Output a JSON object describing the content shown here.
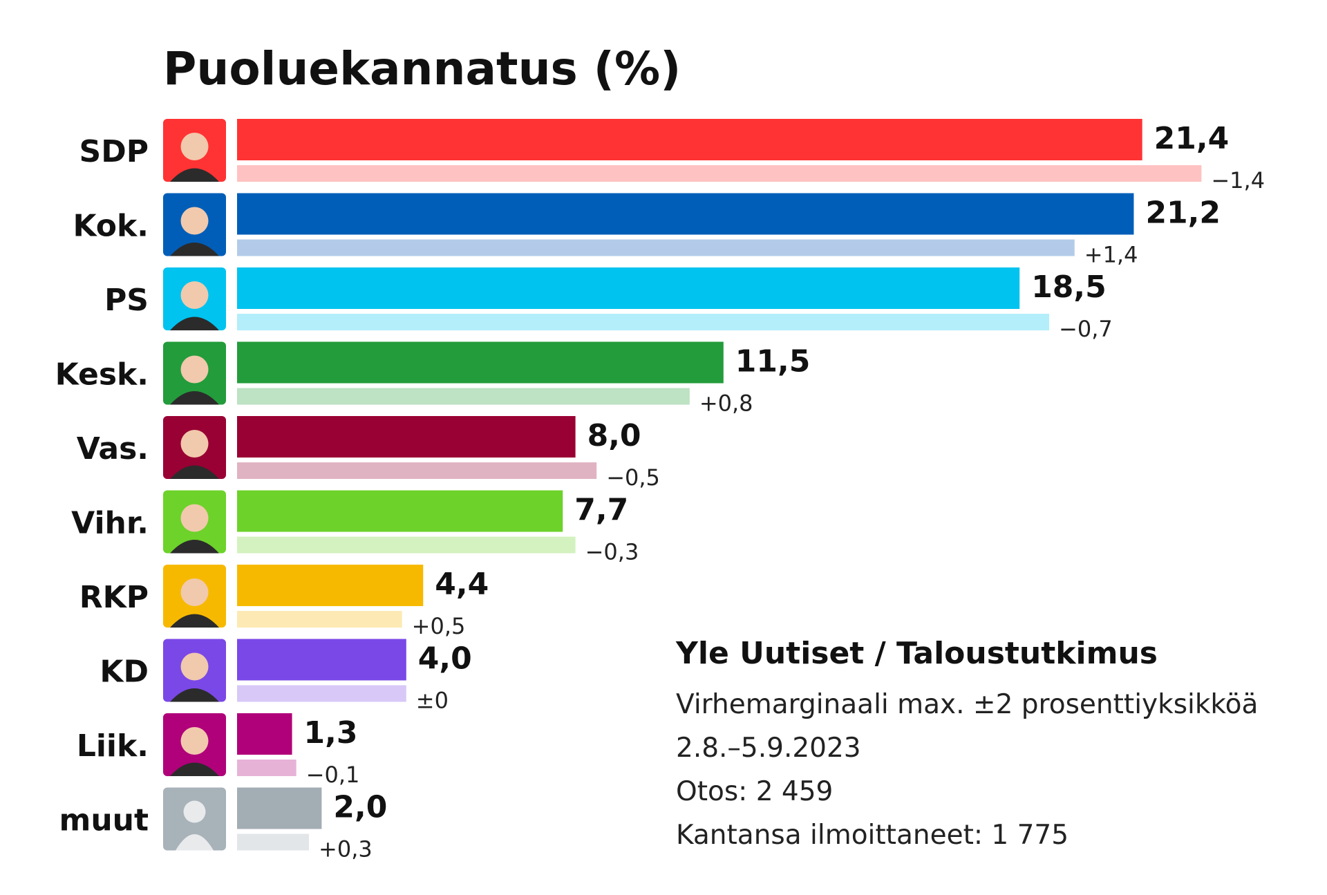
{
  "chart_data": {
    "type": "bar",
    "orientation": "horizontal",
    "title": "Puoluekannatus (%)",
    "categories": [
      "SDP",
      "Kok.",
      "PS",
      "Kesk.",
      "Vas.",
      "Vihr.",
      "RKP",
      "KD",
      "Liik.",
      "muut"
    ],
    "values": [
      21.4,
      21.2,
      18.5,
      11.5,
      8.0,
      7.7,
      4.4,
      4.0,
      1.3,
      2.0
    ],
    "value_labels": [
      "21,4",
      "21,2",
      "18,5",
      "11,5",
      "8,0",
      "7,7",
      "4,4",
      "4,0",
      "1,3",
      "2,0"
    ],
    "previous_values": [
      22.8,
      19.8,
      19.2,
      10.7,
      8.5,
      8.0,
      3.9,
      4.0,
      1.4,
      1.7
    ],
    "changes": [
      -1.4,
      1.4,
      -0.7,
      0.8,
      -0.5,
      -0.3,
      0.5,
      0.0,
      -0.1,
      0.3
    ],
    "change_labels": [
      "−1,4",
      "+1,4",
      "−0,7",
      "+0,8",
      "−0,5",
      "−0,3",
      "+0,5",
      "±0",
      "−0,1",
      "+0,3"
    ],
    "colors": [
      "#ff3333",
      "#005eb8",
      "#00c3ef",
      "#239c3b",
      "#990033",
      "#6dd22a",
      "#f7b900",
      "#7a48e6",
      "#b0007a",
      "#a3adb4"
    ],
    "light_colors": [
      "#ffc2c2",
      "#b3cbe8",
      "#b3eefa",
      "#bde2c4",
      "#e0b3c2",
      "#d3f2bf",
      "#fde9b3",
      "#d7c8f7",
      "#e6b3d7",
      "#e3e6e8"
    ],
    "icons": [
      "portrait-sdp-icon",
      "portrait-kok-icon",
      "portrait-ps-icon",
      "portrait-kesk-icon",
      "portrait-vas-icon",
      "portrait-vihr-icon",
      "portrait-rkp-icon",
      "portrait-kd-icon",
      "portrait-liik-icon",
      "placeholder-person-icon"
    ],
    "xlim": [
      0,
      25
    ],
    "grid": false,
    "legend": "none"
  },
  "source": {
    "title": "Yle Uutiset / Taloustutkimus",
    "lines": [
      "Virhemarginaali max. ±2 prosenttiyksikköä",
      "2.8.–5.9.2023",
      "Otos: 2 459",
      "Kantansa ilmoittaneet: 1 775"
    ]
  }
}
